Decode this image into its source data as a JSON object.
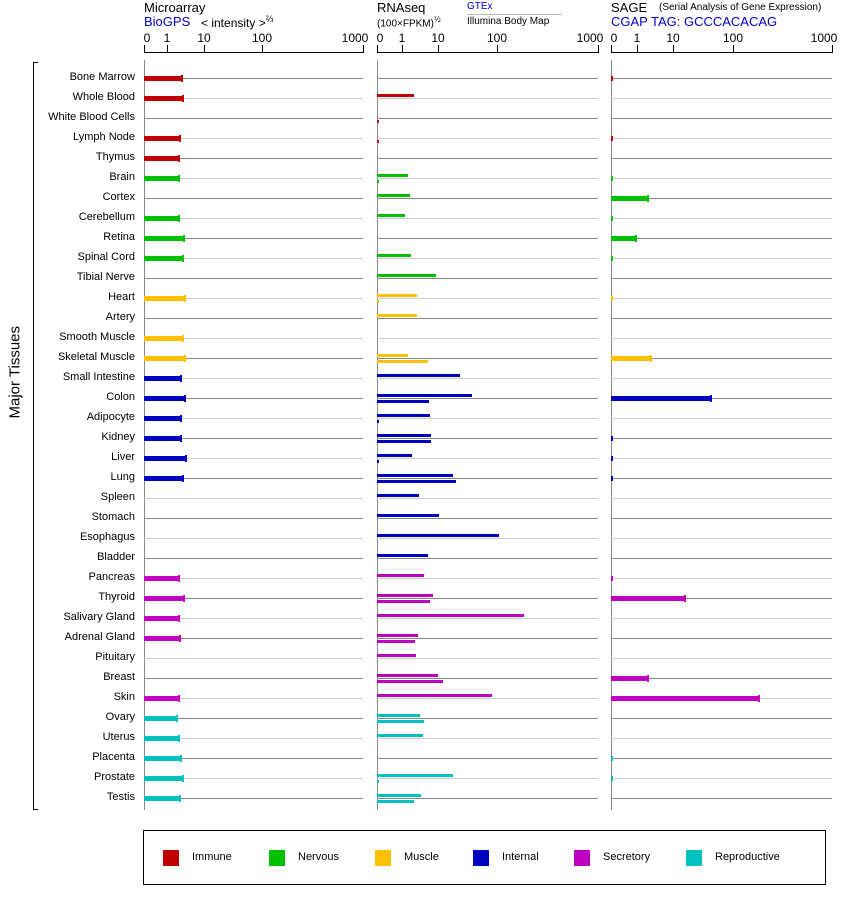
{
  "headers": {
    "microarray": {
      "title": "Microarray",
      "source": "BioGPS",
      "unit": "< intensity >",
      "unit_exp": "⅔"
    },
    "rnaseq": {
      "title": "RNAseq",
      "unit": "(100×FPKM)",
      "unit_exp": "½",
      "source_top": "GTEx",
      "source_bottom": "Illumina Body Map"
    },
    "sage": {
      "title": "SAGE",
      "subtitle": "(Serial Analysis of Gene Expression)",
      "tag": "CGAP TAG: GCCCACACAG"
    }
  },
  "y_group_label": "Major Tissues",
  "colors": {
    "immune": "#c00000",
    "nervous": "#00c000",
    "muscle": "#ffc000",
    "internal": "#0000c0",
    "secretory": "#c000c0",
    "reproductive": "#00c0c0"
  },
  "legend": [
    {
      "key": "immune",
      "label": "Immune"
    },
    {
      "key": "nervous",
      "label": "Nervous"
    },
    {
      "key": "muscle",
      "label": "Muscle"
    },
    {
      "key": "internal",
      "label": "Internal"
    },
    {
      "key": "secretory",
      "label": "Secretory"
    },
    {
      "key": "reproductive",
      "label": "Reproductive"
    }
  ],
  "chart_data": {
    "type": "bar",
    "orientation": "horizontal",
    "panels": [
      "Microarray (BioGPS)",
      "RNAseq (GTEx / Illumina Body Map)",
      "SAGE"
    ],
    "axis_ticks": [
      "0",
      "1",
      "10",
      "100",
      "1000"
    ],
    "xlim": [
      0,
      1000
    ],
    "tissues": [
      {
        "name": "Bone Marrow",
        "group": "immune",
        "ma": 2.5,
        "gtex": null,
        "illumina": null,
        "sage": 0.05
      },
      {
        "name": "Whole Blood",
        "group": "immune",
        "ma": 2.65,
        "gtex": 2.15,
        "illumina": null,
        "sage": null
      },
      {
        "name": "White Blood Cells",
        "group": "immune",
        "ma": null,
        "gtex": null,
        "illumina": 0.05,
        "sage": null
      },
      {
        "name": "Lymph Node",
        "group": "immune",
        "ma": 2.2,
        "gtex": null,
        "illumina": 0.05,
        "sage": 0.05
      },
      {
        "name": "Thymus",
        "group": "immune",
        "ma": 2.1,
        "gtex": null,
        "illumina": null,
        "sage": null
      },
      {
        "name": "Brain",
        "group": "nervous",
        "ma": 2.07,
        "gtex": 1.47,
        "illumina": 0.05,
        "sage": 0.05
      },
      {
        "name": "Cortex",
        "group": "nervous",
        "ma": null,
        "gtex": 1.67,
        "illumina": null,
        "sage": 2.0
      },
      {
        "name": "Cerebellum",
        "group": "nervous",
        "ma": 2.1,
        "gtex": 1.21,
        "illumina": null,
        "sage": 0.05
      },
      {
        "name": "Retina",
        "group": "nervous",
        "ma": 2.8,
        "gtex": null,
        "illumina": null,
        "sage": 0.95
      },
      {
        "name": "Spinal Cord",
        "group": "nervous",
        "ma": 2.65,
        "gtex": 1.78,
        "illumina": null,
        "sage": 0.05
      },
      {
        "name": "Tibial Nerve",
        "group": "nervous",
        "ma": null,
        "gtex": 8.8,
        "illumina": null,
        "sage": null
      },
      {
        "name": "Heart",
        "group": "muscle",
        "ma": 3.06,
        "gtex": 2.6,
        "illumina": 0.05,
        "sage": 0.05
      },
      {
        "name": "Artery",
        "group": "muscle",
        "ma": null,
        "gtex": 2.6,
        "illumina": null,
        "sage": null
      },
      {
        "name": "Smooth Muscle",
        "group": "muscle",
        "ma": 2.65,
        "gtex": null,
        "illumina": null,
        "sage": null
      },
      {
        "name": "Skeletal Muscle",
        "group": "muscle",
        "ma": 3.0,
        "gtex": 1.47,
        "illumina": 5.3,
        "sage": 2.45
      },
      {
        "name": "Small Intestine",
        "group": "internal",
        "ma": 2.35,
        "gtex": 23.6,
        "illumina": null,
        "sage": null
      },
      {
        "name": "Colon",
        "group": "internal",
        "ma": 3.06,
        "gtex": 37.7,
        "illumina": 5.6,
        "sage": 43
      },
      {
        "name": "Adipocyte",
        "group": "internal",
        "ma": 2.35,
        "gtex": 6.0,
        "illumina": 0.05,
        "sage": null
      },
      {
        "name": "Kidney",
        "group": "internal",
        "ma": 2.35,
        "gtex": 6.4,
        "illumina": 6.4,
        "sage": 0.05
      },
      {
        "name": "Liver",
        "group": "internal",
        "ma": 3.2,
        "gtex": 1.9,
        "illumina": 0.05,
        "sage": 0.05
      },
      {
        "name": "Lung",
        "group": "internal",
        "ma": 2.65,
        "gtex": 18,
        "illumina": 20.3,
        "sage": 0.05
      },
      {
        "name": "Spleen",
        "group": "internal",
        "ma": null,
        "gtex": 2.97,
        "illumina": null,
        "sage": null
      },
      {
        "name": "Stomach",
        "group": "internal",
        "ma": null,
        "gtex": 10.4,
        "illumina": null,
        "sage": null
      },
      {
        "name": "Esophagus",
        "group": "internal",
        "ma": null,
        "gtex": 105,
        "illumina": null,
        "sage": null
      },
      {
        "name": "Bladder",
        "group": "internal",
        "ma": null,
        "gtex": 5.3,
        "illumina": null,
        "sage": null
      },
      {
        "name": "Pancreas",
        "group": "secretory",
        "ma": 2.1,
        "gtex": 4.1,
        "illumina": null,
        "sage": 0.05
      },
      {
        "name": "Thyroid",
        "group": "secretory",
        "ma": 2.8,
        "gtex": 7.2,
        "illumina": 6.0,
        "sage": 16
      },
      {
        "name": "Salivary Gland",
        "group": "secretory",
        "ma": 2.07,
        "gtex": 185,
        "illumina": null,
        "sage": null
      },
      {
        "name": "Adrenal Gland",
        "group": "secretory",
        "ma": 2.2,
        "gtex": 2.78,
        "illumina": 2.3,
        "sage": null
      },
      {
        "name": "Pituitary",
        "group": "secretory",
        "ma": null,
        "gtex": 2.45,
        "illumina": null,
        "sage": null
      },
      {
        "name": "Breast",
        "group": "secretory",
        "ma": null,
        "gtex": 10,
        "illumina": 12.2,
        "sage": 2.0
      },
      {
        "name": "Skin",
        "group": "secretory",
        "ma": 2.07,
        "gtex": 82,
        "illumina": null,
        "sage": 183
      },
      {
        "name": "Ovary",
        "group": "reproductive",
        "ma": 1.83,
        "gtex": 3.16,
        "illumina": 4.1,
        "sage": null
      },
      {
        "name": "Uterus",
        "group": "reproductive",
        "ma": 2.07,
        "gtex": 3.8,
        "illumina": null,
        "sage": null
      },
      {
        "name": "Placenta",
        "group": "reproductive",
        "ma": 2.4,
        "gtex": null,
        "illumina": null,
        "sage": 0.05
      },
      {
        "name": "Prostate",
        "group": "reproductive",
        "ma": 2.65,
        "gtex": 18,
        "illumina": 0.05,
        "sage": 0.05
      },
      {
        "name": "Testis",
        "group": "reproductive",
        "ma": 2.2,
        "gtex": 3.37,
        "illumina": 2.15,
        "sage": null
      }
    ]
  }
}
